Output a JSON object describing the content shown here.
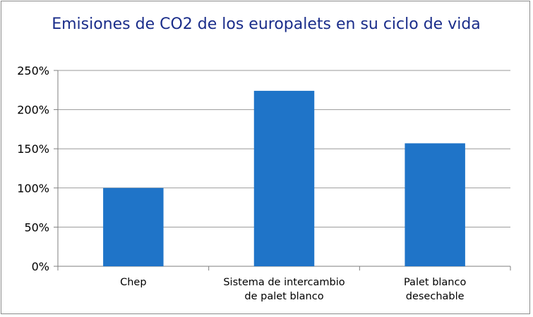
{
  "chart_data": {
    "type": "bar",
    "title": "Emisiones de CO2 de los europalets en su ciclo de vida",
    "categories": [
      [
        "Chep"
      ],
      [
        "Sistema de intercambio",
        "de palet blanco"
      ],
      [
        "Palet blanco",
        "desechable"
      ]
    ],
    "values": [
      100,
      224,
      157
    ],
    "y_unit": "%",
    "ylim": [
      0,
      250
    ],
    "y_ticks": [
      0,
      50,
      100,
      150,
      200,
      250
    ],
    "y_tick_labels": [
      "0%",
      "50%",
      "100%",
      "150%",
      "200%",
      "250%"
    ],
    "grid": true,
    "legend": "none",
    "bar_color": "#1f74c8",
    "title_color": "#1a2d8a",
    "grid_color": "#9a9a9a"
  }
}
